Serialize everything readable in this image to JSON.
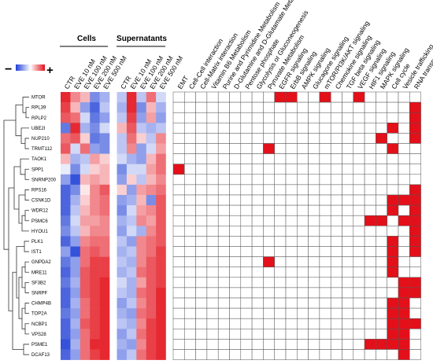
{
  "chart_data": {
    "type": "heatmap",
    "legend": {
      "low_symbol": "−",
      "high_symbol": "+",
      "low_color": "#1f3fd6",
      "mid_color": "#ffffff",
      "high_color": "#e3101a"
    },
    "group_titles": {
      "cells": "Cells",
      "supernatants": "Supernatants"
    },
    "conditions": [
      "CTR",
      "EVE 10 nM",
      "EVE 100 nM",
      "EVE 200 nM",
      "EVE 500 nM"
    ],
    "genes": [
      "MTOR",
      "RPL39",
      "RPLP2",
      "UBE2I",
      "NUP210",
      "TRMT112",
      "TAOK1",
      "SPP1",
      "SNRNP200",
      "RPS16",
      "CSNK1D",
      "WDR12",
      "PSMC6",
      "HYOU1",
      "PLK1",
      "IST1",
      "GNPDA2",
      "MRE11",
      "SF3B2",
      "SNRPF",
      "CHMP4B",
      "TOP2A",
      "NCBP1",
      "VPS28",
      "PSME1",
      "DCAF13"
    ],
    "cells_values": [
      [
        0.9,
        0.5,
        0.3,
        -0.6,
        -0.4
      ],
      [
        0.8,
        0.3,
        -0.5,
        -0.8,
        -0.3
      ],
      [
        0.7,
        0.6,
        -0.2,
        -0.7,
        -0.5
      ],
      [
        -0.7,
        0.9,
        -0.4,
        -0.6,
        -0.2
      ],
      [
        0.6,
        0.7,
        0.2,
        -0.7,
        -0.6
      ],
      [
        0.7,
        -0.2,
        0.6,
        -0.5,
        -0.6
      ],
      [
        0.3,
        -0.4,
        -0.3,
        0.4,
        0.2
      ],
      [
        -0.1,
        -0.6,
        -0.2,
        0.2,
        0.3
      ],
      [
        -0.5,
        -0.9,
        0.3,
        0.4,
        0.3
      ],
      [
        -0.8,
        -0.6,
        0.1,
        0.5,
        0.7
      ],
      [
        -0.8,
        -0.4,
        0.2,
        0.5,
        0.6
      ],
      [
        -0.8,
        -0.3,
        0.3,
        0.5,
        0.6
      ],
      [
        -0.7,
        -0.2,
        0.4,
        0.4,
        0.5
      ],
      [
        -0.6,
        -0.3,
        0.3,
        0.5,
        0.5
      ],
      [
        -0.8,
        -0.5,
        0.5,
        0.6,
        0.6
      ],
      [
        -0.5,
        -0.9,
        0.6,
        0.7,
        0.6
      ],
      [
        -0.7,
        -0.5,
        0.6,
        0.8,
        0.8
      ],
      [
        -0.8,
        -0.5,
        0.7,
        0.8,
        0.8
      ],
      [
        -0.7,
        -0.4,
        0.7,
        0.8,
        0.9
      ],
      [
        -0.8,
        -0.5,
        0.7,
        0.8,
        0.9
      ],
      [
        -0.8,
        -0.4,
        0.6,
        0.8,
        0.9
      ],
      [
        -0.7,
        -0.5,
        0.6,
        0.8,
        0.9
      ],
      [
        -0.8,
        -0.4,
        0.7,
        0.8,
        0.9
      ],
      [
        -0.8,
        -0.5,
        0.6,
        0.8,
        0.9
      ],
      [
        -0.9,
        -0.4,
        0.6,
        0.9,
        0.9
      ],
      [
        -0.8,
        -0.5,
        0.6,
        0.8,
        0.9
      ]
    ],
    "supernatants_values": [
      [
        -0.3,
        0.9,
        -0.3,
        0.6,
        -0.2
      ],
      [
        -0.4,
        0.9,
        -0.6,
        0.3,
        -0.4
      ],
      [
        -0.3,
        0.8,
        -0.5,
        0.4,
        -0.5
      ],
      [
        0.3,
        0.7,
        -0.3,
        -0.4,
        -0.3
      ],
      [
        -0.3,
        0.6,
        0.2,
        -0.3,
        0.5
      ],
      [
        -0.3,
        0.5,
        -0.5,
        -0.2,
        0.4
      ],
      [
        -0.2,
        -0.4,
        -0.5,
        0.3,
        0.6
      ],
      [
        -0.6,
        -0.2,
        -0.2,
        0.4,
        0.6
      ],
      [
        -0.5,
        0.2,
        -0.3,
        0.3,
        0.5
      ],
      [
        0.2,
        -0.5,
        0.4,
        0.5,
        0.6
      ],
      [
        -0.5,
        -0.4,
        0.3,
        -0.6,
        0.7
      ],
      [
        -0.6,
        -0.2,
        0.4,
        0.5,
        0.7
      ],
      [
        -0.4,
        -0.3,
        0.5,
        0.4,
        0.7
      ],
      [
        -0.5,
        -0.2,
        -0.4,
        0.5,
        0.7
      ],
      [
        -0.3,
        -0.5,
        0.5,
        0.6,
        0.7
      ],
      [
        -0.4,
        -0.3,
        0.5,
        0.6,
        0.8
      ],
      [
        -0.3,
        -0.4,
        0.5,
        0.7,
        0.8
      ],
      [
        -0.4,
        -0.3,
        0.6,
        0.7,
        0.8
      ],
      [
        -0.2,
        -0.4,
        0.4,
        0.7,
        0.8
      ],
      [
        -0.3,
        -0.4,
        0.6,
        0.7,
        0.9
      ],
      [
        -0.5,
        -0.3,
        0.5,
        0.7,
        0.9
      ],
      [
        -0.4,
        -0.5,
        0.6,
        0.7,
        0.9
      ],
      [
        -0.3,
        -0.4,
        0.5,
        0.8,
        0.9
      ],
      [
        -0.5,
        -0.3,
        0.6,
        0.8,
        0.9
      ],
      [
        -0.4,
        -0.5,
        0.5,
        0.8,
        0.9
      ],
      [
        -0.5,
        -0.3,
        0.6,
        0.8,
        0.9
      ]
    ],
    "pathways": [
      "EMT",
      "Cell-Cell interaction",
      "Cell-Matrix interaction",
      "Vitamin B6 Metabolism",
      "Purine and Pyrimidine Metabolism",
      "D-Glutamine and D-Glutamate Metabolism",
      "Pentose phosphate",
      "Glycolysis or Gluconeogenesis",
      "Pyruvate Metabolism",
      "EGFR signaling",
      "ErbB signaling",
      "AMPK signaling",
      "Glucagone signaling",
      "mTOR/PI3K/AKT signaling",
      "Chemokine signaling",
      "TGF beta signaling",
      "VEGF signaling",
      "HIF1 signaling",
      "MAPK signaling",
      "Cell cycle",
      "Vesicle trafficking",
      "RNA transport"
    ],
    "membership_color": "#e3101a",
    "membership": [
      [
        0,
        9
      ],
      [
        0,
        10
      ],
      [
        0,
        13
      ],
      [
        0,
        16
      ],
      [
        1,
        21
      ],
      [
        2,
        21
      ],
      [
        3,
        19
      ],
      [
        3,
        21
      ],
      [
        4,
        18
      ],
      [
        4,
        21
      ],
      [
        5,
        8
      ],
      [
        5,
        19
      ],
      [
        7,
        0
      ],
      [
        9,
        21
      ],
      [
        10,
        19
      ],
      [
        10,
        20
      ],
      [
        10,
        21
      ],
      [
        11,
        19
      ],
      [
        11,
        21
      ],
      [
        12,
        17
      ],
      [
        12,
        18
      ],
      [
        12,
        20
      ],
      [
        12,
        21
      ],
      [
        13,
        21
      ],
      [
        14,
        19
      ],
      [
        14,
        21
      ],
      [
        15,
        19
      ],
      [
        15,
        21
      ],
      [
        16,
        8
      ],
      [
        16,
        19
      ],
      [
        17,
        19
      ],
      [
        18,
        20
      ],
      [
        18,
        21
      ],
      [
        19,
        20
      ],
      [
        19,
        21
      ],
      [
        20,
        19
      ],
      [
        20,
        20
      ],
      [
        21,
        19
      ],
      [
        21,
        20
      ],
      [
        22,
        19
      ],
      [
        22,
        20
      ],
      [
        22,
        21
      ],
      [
        23,
        19
      ],
      [
        23,
        20
      ],
      [
        24,
        17
      ],
      [
        24,
        18
      ],
      [
        24,
        19
      ],
      [
        24,
        20
      ],
      [
        25,
        20
      ]
    ]
  }
}
